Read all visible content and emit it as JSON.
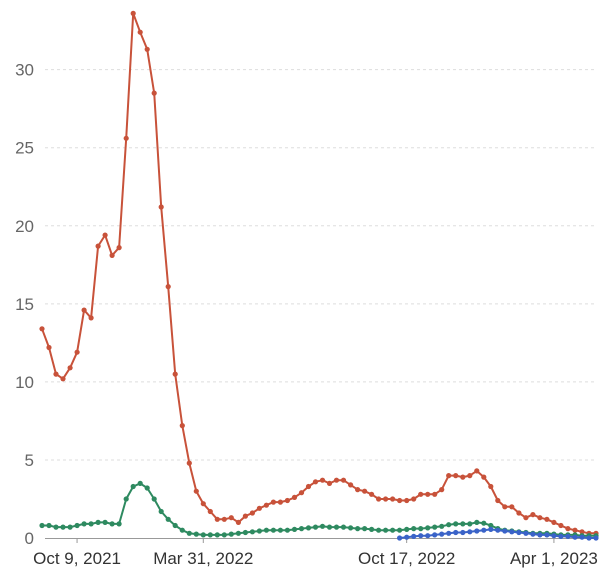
{
  "chart_data": {
    "type": "line",
    "title": "",
    "xlabel": "",
    "ylabel": "",
    "ylim": [
      0,
      33.5
    ],
    "yticks": [
      0,
      5,
      10,
      15,
      20,
      25,
      30
    ],
    "x_tick_labels": [
      "Oct 9, 2021",
      "Mar 31, 2022",
      "Oct 17, 2022",
      "Apr 1, 2023"
    ],
    "grid": true,
    "legend": "none",
    "x_index_range": [
      0,
      79
    ],
    "x_tick_indices": [
      5,
      23,
      52,
      73
    ],
    "series": [
      {
        "color": "#c8523a",
        "start_index": 0,
        "values": [
          13.4,
          12.2,
          10.5,
          10.2,
          10.9,
          11.9,
          14.6,
          14.1,
          18.7,
          19.4,
          18.1,
          18.6,
          25.6,
          33.6,
          32.4,
          31.3,
          28.5,
          21.2,
          16.1,
          10.5,
          7.2,
          4.8,
          3.0,
          2.2,
          1.7,
          1.2,
          1.2,
          1.3,
          1.0,
          1.4,
          1.6,
          1.9,
          2.1,
          2.3,
          2.3,
          2.4,
          2.6,
          2.9,
          3.3,
          3.6,
          3.7,
          3.5,
          3.7,
          3.7,
          3.4,
          3.1,
          3.0,
          2.8,
          2.5,
          2.5,
          2.5,
          2.4,
          2.4,
          2.5,
          2.8,
          2.8,
          2.8,
          3.1,
          4.0,
          4.0,
          3.9,
          4.0,
          4.3,
          3.9,
          3.3,
          2.4,
          2.0,
          2.0,
          1.6,
          1.3,
          1.5,
          1.3,
          1.2,
          1.0,
          0.8,
          0.6,
          0.5,
          0.4,
          0.3,
          0.3
        ]
      },
      {
        "color": "#2e8a60",
        "start_index": 0,
        "values": [
          0.8,
          0.8,
          0.7,
          0.7,
          0.7,
          0.8,
          0.9,
          0.9,
          1.0,
          1.0,
          0.9,
          0.9,
          2.5,
          3.3,
          3.5,
          3.2,
          2.5,
          1.7,
          1.2,
          0.8,
          0.5,
          0.3,
          0.25,
          0.2,
          0.2,
          0.2,
          0.2,
          0.25,
          0.3,
          0.35,
          0.4,
          0.45,
          0.5,
          0.5,
          0.5,
          0.5,
          0.55,
          0.6,
          0.65,
          0.7,
          0.75,
          0.7,
          0.7,
          0.7,
          0.65,
          0.6,
          0.6,
          0.55,
          0.5,
          0.5,
          0.5,
          0.5,
          0.55,
          0.6,
          0.6,
          0.65,
          0.7,
          0.75,
          0.85,
          0.9,
          0.9,
          0.9,
          1.0,
          0.95,
          0.8,
          0.6,
          0.5,
          0.45,
          0.4,
          0.35,
          0.3,
          0.3,
          0.3,
          0.25,
          0.2,
          0.2,
          0.2,
          0.15,
          0.15,
          0.15
        ]
      },
      {
        "color": "#3a63c8",
        "start_index": 51,
        "values": [
          0.0,
          0.05,
          0.1,
          0.15,
          0.15,
          0.2,
          0.25,
          0.3,
          0.35,
          0.35,
          0.4,
          0.45,
          0.5,
          0.55,
          0.5,
          0.45,
          0.4,
          0.35,
          0.3,
          0.25,
          0.2,
          0.2,
          0.15,
          0.1,
          0.1,
          0.05,
          0.05,
          0.0,
          0.0
        ]
      }
    ]
  }
}
